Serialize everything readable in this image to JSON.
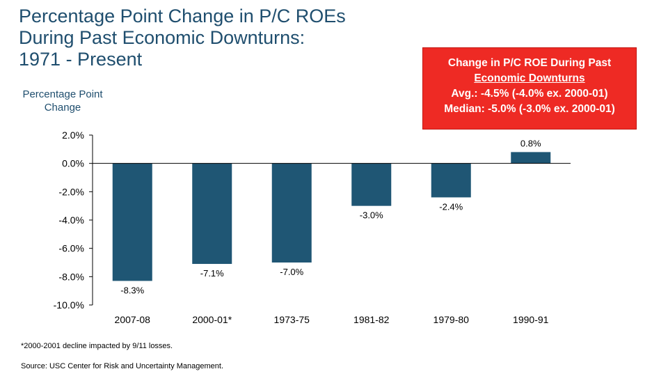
{
  "title": {
    "line1": "Percentage Point Change in P/C ROEs",
    "line2": "During Past Economic Downturns:",
    "line3": "1971 - Present"
  },
  "callout": {
    "line1": "Change in P/C ROE During Past",
    "line2": "Economic Downturns",
    "line3": "Avg.: -4.5% (-4.0% ex. 2000-01)",
    "line4": "Median: -5.0% (-3.0% ex. 2000-01)"
  },
  "footnotes": {
    "note": "*2000-2001 decline impacted by 9/11 losses.",
    "source": "Source: USC Center for Risk and Uncertainty Management."
  },
  "colors": {
    "bar": "#1f5674",
    "title": "#1f4e6e",
    "callout": "#ee2a24"
  },
  "chart_data": {
    "type": "bar",
    "ylabel_line1": "Percentage Point",
    "ylabel_line2": "Change",
    "categories": [
      "2007-08",
      "2000-01*",
      "1973-75",
      "1981-82",
      "1979-80",
      "1990-91"
    ],
    "values": [
      -8.3,
      -7.1,
      -7.0,
      -3.0,
      -2.4,
      0.8
    ],
    "value_labels": [
      "-8.3%",
      "-7.1%",
      "-7.0%",
      "-3.0%",
      "-2.4%",
      "0.8%"
    ],
    "ylim": [
      -10,
      2
    ],
    "yticks": [
      2,
      0,
      -2,
      -4,
      -6,
      -8,
      -10
    ],
    "ytick_labels": [
      "2.0%",
      "0.0%",
      "-2.0%",
      "-4.0%",
      "-6.0%",
      "-8.0%",
      "-10.0%"
    ],
    "grid": false,
    "legend": "none"
  }
}
